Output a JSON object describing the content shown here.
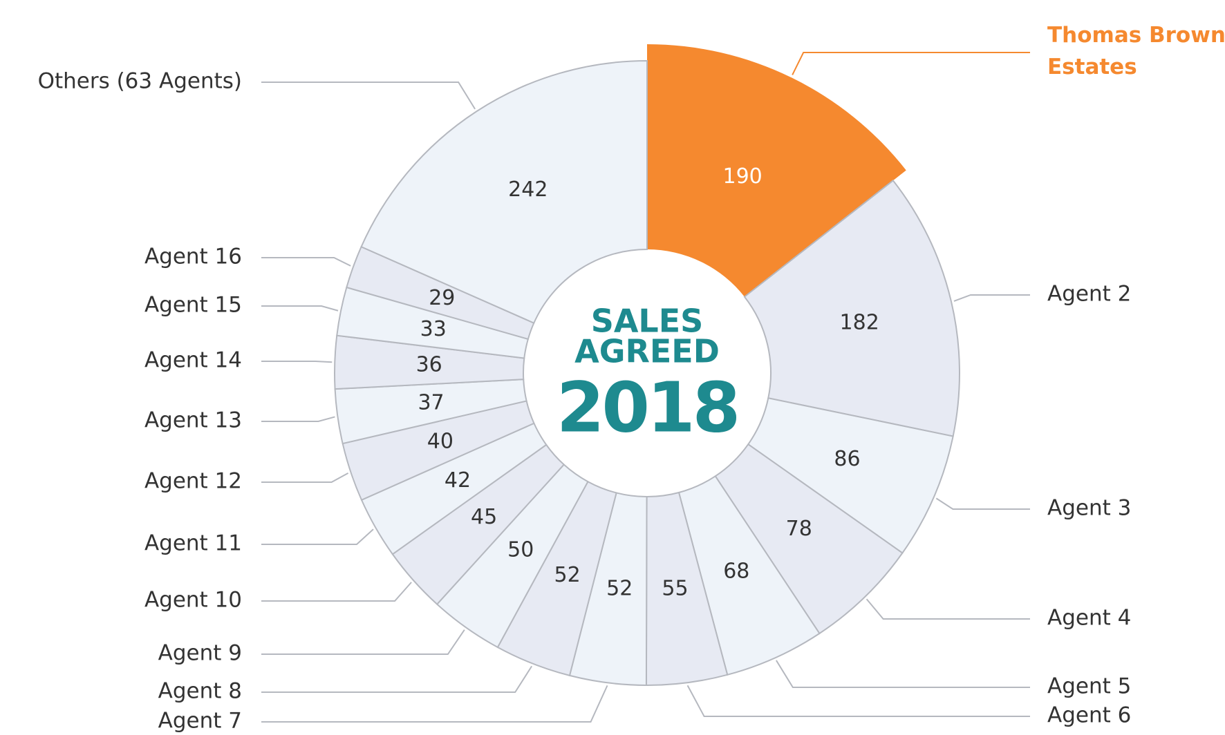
{
  "chart_data": {
    "type": "pie",
    "center_text": [
      "SALES",
      "AGREED",
      "2018"
    ],
    "categories": [
      "Thomas Brown Estates",
      "Agent 2",
      "Agent 3",
      "Agent 4",
      "Agent 5",
      "Agent 6",
      "Agent 7",
      "Agent 8",
      "Agent 9",
      "Agent 10",
      "Agent 11",
      "Agent 12",
      "Agent 13",
      "Agent 14",
      "Agent 15",
      "Agent 16",
      "Others (63 Agents)"
    ],
    "values": [
      190,
      182,
      86,
      78,
      68,
      55,
      52,
      52,
      50,
      45,
      42,
      40,
      37,
      36,
      33,
      29,
      242
    ],
    "colors": [
      "#f5892f",
      "#e7eaf3",
      "#eef3f9",
      "#e7eaf3",
      "#eef3f9",
      "#e7eaf3",
      "#eef3f9",
      "#e7eaf3",
      "#eef3f9",
      "#e7eaf3",
      "#eef3f9",
      "#e7eaf3",
      "#eef3f9",
      "#e7eaf3",
      "#eef3f9",
      "#e7eaf3",
      "#eef3f9"
    ],
    "highlight": 0
  }
}
